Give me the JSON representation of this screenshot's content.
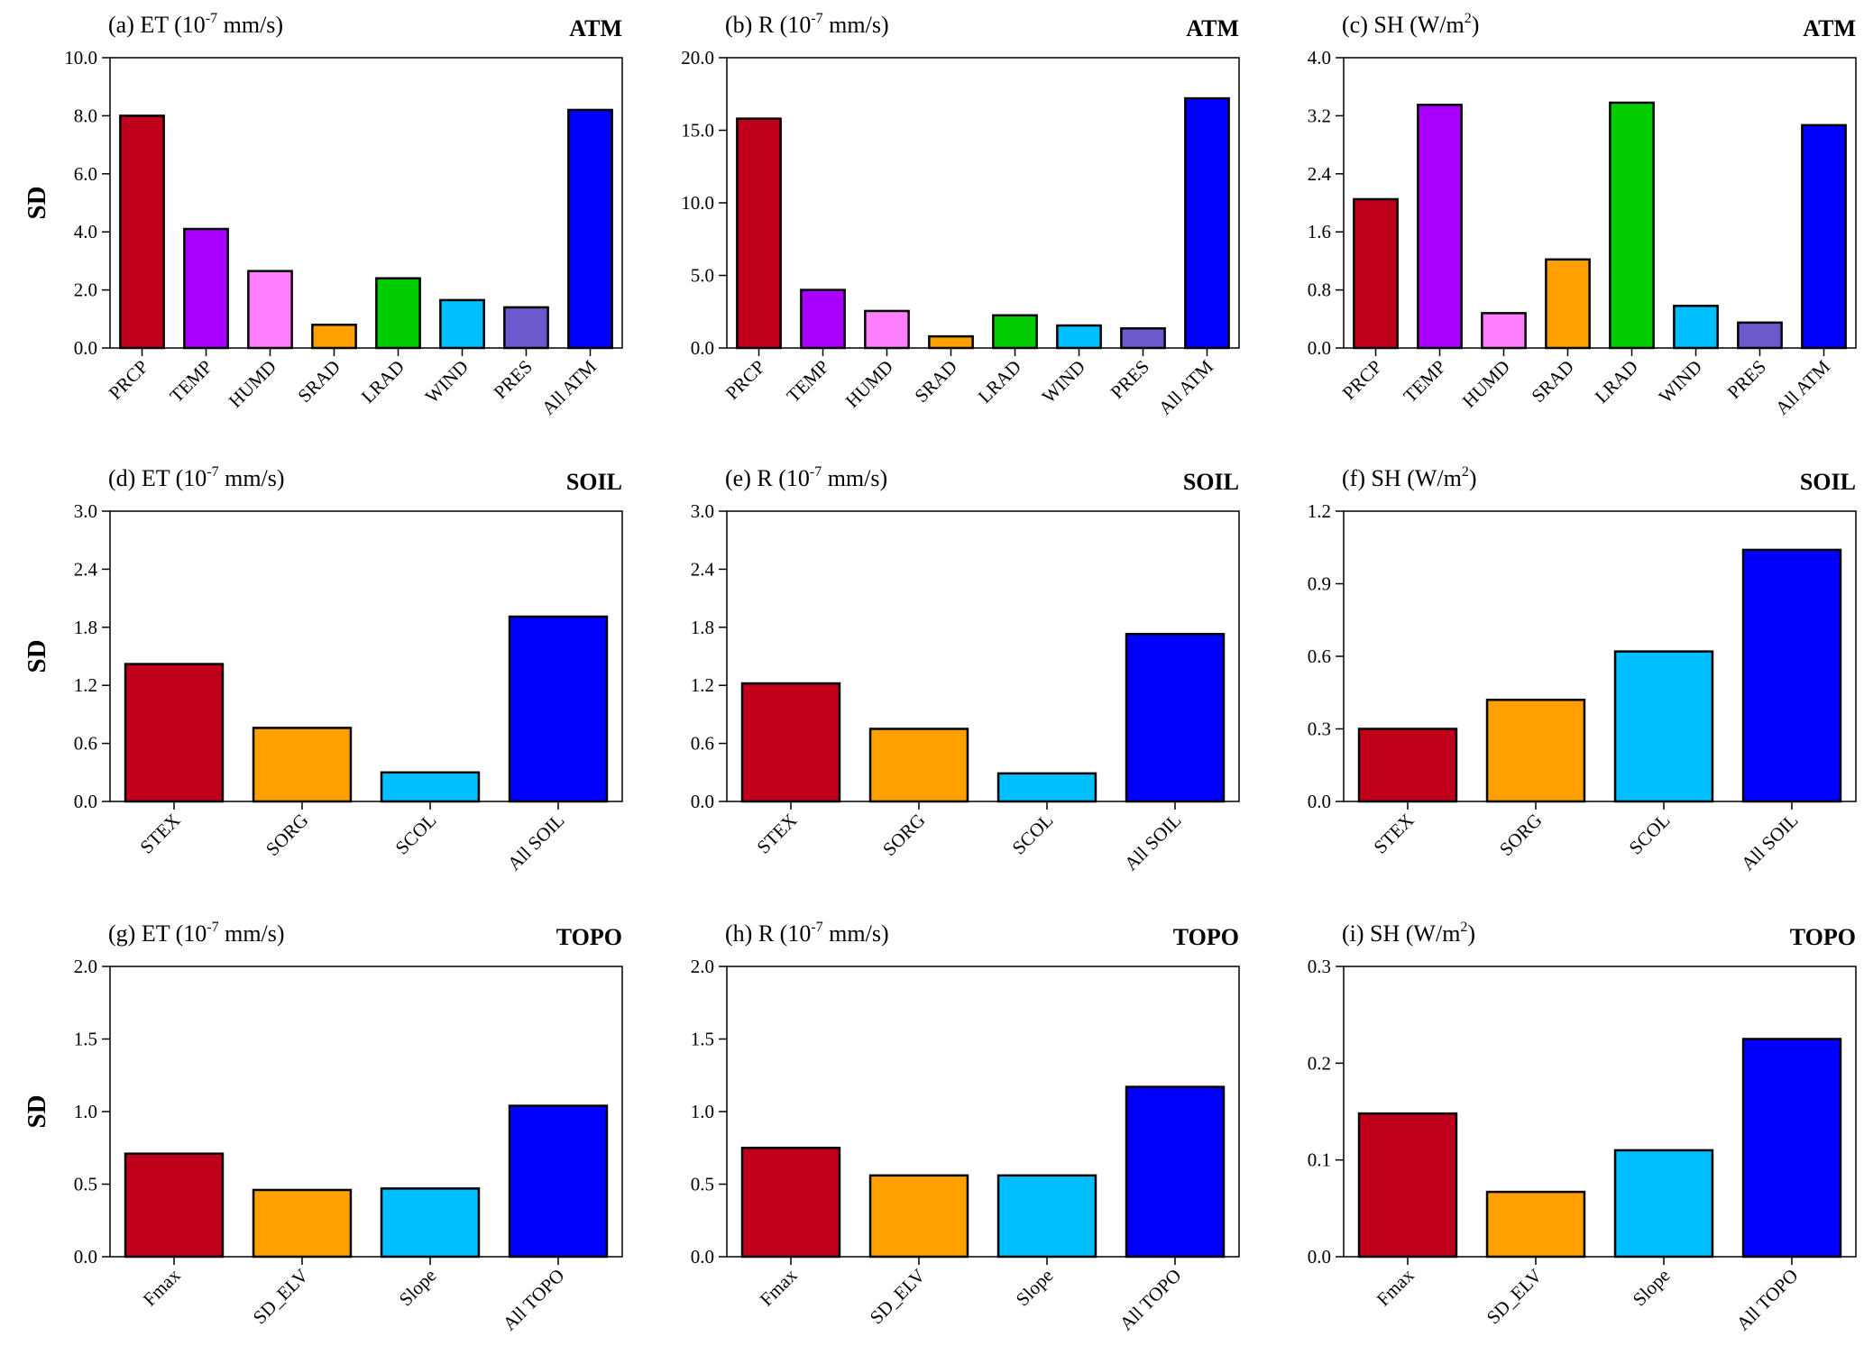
{
  "figure": {
    "panels": [
      {
        "id": "a",
        "title": "(a) ET (10",
        "title_sup": "-7",
        "title_rest": " mm/s)",
        "group": "ATM",
        "ylabel": "SD",
        "chart_data": {
          "type": "bar",
          "categories": [
            "PRCP",
            "TEMP",
            "HUMD",
            "SRAD",
            "LRAD",
            "WIND",
            "PRES",
            "All ATM"
          ],
          "values": [
            8.0,
            4.1,
            2.65,
            0.8,
            2.4,
            1.65,
            1.4,
            8.2
          ],
          "colors": [
            "#c0001a",
            "#aa00ff",
            "#ff80ff",
            "#ff9f00",
            "#00cc00",
            "#00bfff",
            "#6a5acd",
            "#0000ff"
          ],
          "ylim": [
            0,
            10
          ],
          "yticks": [
            "0.0",
            "2.0",
            "4.0",
            "6.0",
            "8.0",
            "10.0"
          ],
          "rotate_labels": true
        }
      },
      {
        "id": "b",
        "title": "(b) R (10",
        "title_sup": "-7",
        "title_rest": " mm/s)",
        "group": "ATM",
        "ylabel": "",
        "chart_data": {
          "type": "bar",
          "categories": [
            "PRCP",
            "TEMP",
            "HUMD",
            "SRAD",
            "LRAD",
            "WIND",
            "PRES",
            "All ATM"
          ],
          "values": [
            15.8,
            4.0,
            2.55,
            0.8,
            2.25,
            1.55,
            1.35,
            17.2
          ],
          "colors": [
            "#c0001a",
            "#aa00ff",
            "#ff80ff",
            "#ff9f00",
            "#00cc00",
            "#00bfff",
            "#6a5acd",
            "#0000ff"
          ],
          "ylim": [
            0,
            20
          ],
          "yticks": [
            "0.0",
            "5.0",
            "10.0",
            "15.0",
            "20.0"
          ],
          "rotate_labels": true
        }
      },
      {
        "id": "c",
        "title": "(c) SH (W/m",
        "title_sup": "2",
        "title_rest": ")",
        "group": "ATM",
        "ylabel": "",
        "chart_data": {
          "type": "bar",
          "categories": [
            "PRCP",
            "TEMP",
            "HUMD",
            "SRAD",
            "LRAD",
            "WIND",
            "PRES",
            "All ATM"
          ],
          "values": [
            2.05,
            3.35,
            0.48,
            1.22,
            3.38,
            0.58,
            0.35,
            3.07
          ],
          "colors": [
            "#c0001a",
            "#aa00ff",
            "#ff80ff",
            "#ff9f00",
            "#00cc00",
            "#00bfff",
            "#6a5acd",
            "#0000ff"
          ],
          "ylim": [
            0,
            4
          ],
          "yticks": [
            "0.0",
            "0.8",
            "1.6",
            "2.4",
            "3.2",
            "4.0"
          ],
          "rotate_labels": true
        }
      },
      {
        "id": "d",
        "title": "(d) ET (10",
        "title_sup": "-7",
        "title_rest": " mm/s)",
        "group": "SOIL",
        "ylabel": "SD",
        "chart_data": {
          "type": "bar",
          "categories": [
            "STEX",
            "SORG",
            "SCOL",
            "All SOIL"
          ],
          "values": [
            1.42,
            0.76,
            0.3,
            1.91
          ],
          "colors": [
            "#c0001a",
            "#ff9f00",
            "#00bfff",
            "#0000ff"
          ],
          "ylim": [
            0,
            3
          ],
          "yticks": [
            "0.0",
            "0.6",
            "1.2",
            "1.8",
            "2.4",
            "3.0"
          ],
          "rotate_labels": true
        }
      },
      {
        "id": "e",
        "title": "(e) R (10",
        "title_sup": "-7",
        "title_rest": " mm/s)",
        "group": "SOIL",
        "ylabel": "",
        "chart_data": {
          "type": "bar",
          "categories": [
            "STEX",
            "SORG",
            "SCOL",
            "All SOIL"
          ],
          "values": [
            1.22,
            0.75,
            0.29,
            1.73
          ],
          "colors": [
            "#c0001a",
            "#ff9f00",
            "#00bfff",
            "#0000ff"
          ],
          "ylim": [
            0,
            3
          ],
          "yticks": [
            "0.0",
            "0.6",
            "1.2",
            "1.8",
            "2.4",
            "3.0"
          ],
          "rotate_labels": true
        }
      },
      {
        "id": "f",
        "title": "(f) SH (W/m",
        "title_sup": "2",
        "title_rest": ")",
        "group": "SOIL",
        "ylabel": "",
        "chart_data": {
          "type": "bar",
          "categories": [
            "STEX",
            "SORG",
            "SCOL",
            "All SOIL"
          ],
          "values": [
            0.3,
            0.42,
            0.62,
            1.04
          ],
          "colors": [
            "#c0001a",
            "#ff9f00",
            "#00bfff",
            "#0000ff"
          ],
          "ylim": [
            0,
            1.2
          ],
          "yticks": [
            "0.0",
            "0.3",
            "0.6",
            "0.9",
            "1.2"
          ],
          "rotate_labels": true
        }
      },
      {
        "id": "g",
        "title": "(g) ET (10",
        "title_sup": "-7",
        "title_rest": " mm/s)",
        "group": "TOPO",
        "ylabel": "SD",
        "chart_data": {
          "type": "bar",
          "categories": [
            "Fmax",
            "SD_ELV",
            "Slope",
            "All TOPO"
          ],
          "values": [
            0.71,
            0.46,
            0.47,
            1.04
          ],
          "colors": [
            "#c0001a",
            "#ff9f00",
            "#00bfff",
            "#0000ff"
          ],
          "ylim": [
            0,
            2
          ],
          "yticks": [
            "0.0",
            "0.5",
            "1.0",
            "1.5",
            "2.0"
          ],
          "rotate_labels": true
        }
      },
      {
        "id": "h",
        "title": "(h) R (10",
        "title_sup": "-7",
        "title_rest": " mm/s)",
        "group": "TOPO",
        "ylabel": "",
        "chart_data": {
          "type": "bar",
          "categories": [
            "Fmax",
            "SD_ELV",
            "Slope",
            "All TOPO"
          ],
          "values": [
            0.75,
            0.56,
            0.56,
            1.17
          ],
          "colors": [
            "#c0001a",
            "#ff9f00",
            "#00bfff",
            "#0000ff"
          ],
          "ylim": [
            0,
            2
          ],
          "yticks": [
            "0.0",
            "0.5",
            "1.0",
            "1.5",
            "2.0"
          ],
          "rotate_labels": true
        }
      },
      {
        "id": "i",
        "title": "(i) SH (W/m",
        "title_sup": "2",
        "title_rest": ")",
        "group": "TOPO",
        "ylabel": "",
        "chart_data": {
          "type": "bar",
          "categories": [
            "Fmax",
            "SD_ELV",
            "Slope",
            "All TOPO"
          ],
          "values": [
            0.148,
            0.067,
            0.11,
            0.225
          ],
          "colors": [
            "#c0001a",
            "#ff9f00",
            "#00bfff",
            "#0000ff"
          ],
          "ylim": [
            0,
            0.3
          ],
          "yticks": [
            "0.0",
            "0.1",
            "0.2",
            "0.3"
          ],
          "rotate_labels": true
        }
      }
    ]
  }
}
